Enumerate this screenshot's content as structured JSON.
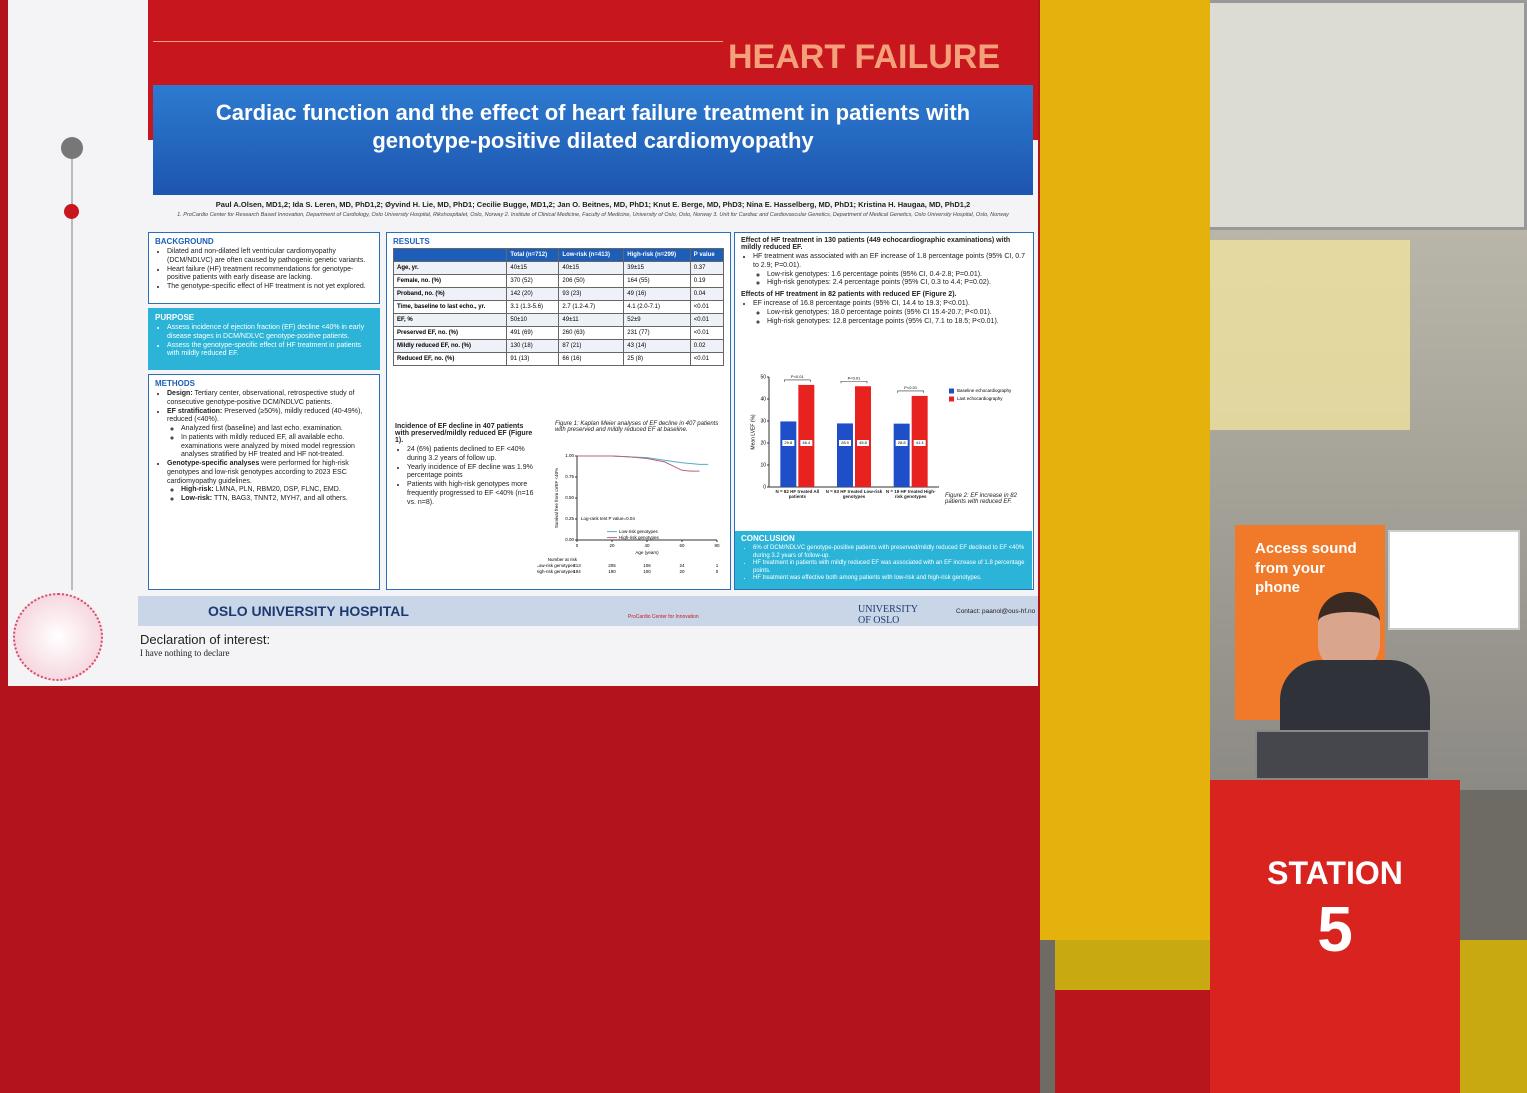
{
  "banner": "HEART FAILURE",
  "poster": {
    "title": "Cardiac function and the effect of heart failure treatment in patients with genotype-positive dilated cardiomyopathy",
    "authors": "Paul A.Olsen, MD1,2; Ida S. Leren, MD, PhD1,2; Øyvind H. Lie, MD, PhD1; Cecilie Bugge, MD1,2; Jan O. Beitnes, MD, PhD1; Knut E. Berge, MD, PhD3; Nina E. Hasselberg, MD, PhD1; Kristina H. Haugaa, MD, PhD1,2",
    "affiliations": "1. ProCardio Center for Research Based Innovation, Department of Cardiology, Oslo University Hospital, Rikshospitalet, Oslo, Norway 2. Institute of Clinical Medicine, Faculty of Medicine, University of Oslo, Oslo, Norway 3. Unit for Cardiac and Cardiovascular Genetics, Department of Medical Genetics, Oslo University Hospital, Oslo, Norway",
    "background": {
      "heading": "BACKGROUND",
      "items": [
        "Dilated and non-dilated left ventricular cardiomyopathy (DCM/NDLVC) are often caused by pathogenic genetic variants.",
        "Heart failure (HF) treatment recommendations for genotype-positive patients with early disease are lacking.",
        "The genotype-specific effect of HF treatment is not yet explored."
      ]
    },
    "purpose": {
      "heading": "PURPOSE",
      "items": [
        "Assess incidence of ejection fraction (EF) decline <40% in early disease stages in DCM/NDLVC genotype-positive patients.",
        "Assess the genotype-specific effect of HF treatment in patients with mildly reduced EF."
      ]
    },
    "methods": {
      "heading": "METHODS",
      "items": [
        {
          "label": "Design:",
          "text": "Tertiary center, observational, retrospective study of consecutive genotype-positive DCM/NDLVC patients."
        },
        {
          "label": "EF stratification:",
          "text": "Preserved (≥50%), mildly reduced (40-49%), reduced (<40%).",
          "sub": [
            "Analyzed first (baseline) and last echo. examination.",
            "In patients with mildly reduced EF, all available echo. examinations were analyzed by mixed model regression analyses stratified by HF treated and HF not-treated."
          ]
        },
        {
          "label": "Genotype-specific analyses",
          "text": "were performed for high-risk genotypes and low-risk genotypes according to 2023 ESC cardiomyopathy guidelines.",
          "sub": [
            {
              "label": "High-risk:",
              "text": "LMNA, PLN, RBM20, DSP, FLNC, EMD."
            },
            {
              "label": "Low-risk:",
              "text": "TTN, BAG3, TNNT2, MYH7, and all others."
            }
          ]
        }
      ]
    },
    "results": {
      "heading": "RESULTS",
      "table": {
        "columns": [
          "Total (n=712)",
          "Low-risk (n=413)",
          "High-risk (n=299)",
          "P value"
        ],
        "rows": [
          [
            "Age, yr.",
            "40±15",
            "40±15",
            "39±15",
            "0.37"
          ],
          [
            "Female, no. (%)",
            "370 (52)",
            "206 (50)",
            "164 (55)",
            "0.19"
          ],
          [
            "Proband, no. (%)",
            "142 (20)",
            "93 (23)",
            "49 (16)",
            "0.04"
          ],
          [
            "Time, baseline to last echo., yr.",
            "3.1 (1.3-5.6)",
            "2.7 (1.2-4.7)",
            "4.1 (2.0-7.1)",
            "<0.01"
          ],
          [
            "EF, %",
            "50±10",
            "49±11",
            "52±9",
            "<0.01"
          ],
          [
            "Preserved EF, no. (%)",
            "491 (69)",
            "260 (63)",
            "231 (77)",
            "<0.01"
          ],
          [
            "Mildly reduced EF, no. (%)",
            "130 (18)",
            "87 (21)",
            "43 (14)",
            "0.02"
          ],
          [
            "Reduced EF, no. (%)",
            "91 (13)",
            "66 (16)",
            "25 (8)",
            "<0.01"
          ]
        ]
      },
      "incidence": {
        "heading": "Incidence of EF decline in 407 patients with preserved/mildly reduced EF (Figure 1).",
        "items": [
          "24 (6%) patients declined to EF <40% during 3.2 years of follow up.",
          "Yearly incidence of EF decline was 1.9% percentage points",
          "Patients with high-risk genotypes more frequently progressed to EF <40% (n=16 vs. n=8)."
        ]
      },
      "figure1": {
        "caption": "Figure 1: Kaplan Meier analyses of EF decline in 407 patients with preserved and mildly reduced EF at baseline.",
        "chart_data": {
          "type": "line",
          "xlabel": "Age (years)",
          "ylabel": "Survival free from LVEF <40%",
          "annotation": "Log-rank test P value=0.04",
          "xlim": [
            0,
            80
          ],
          "xticks": [
            0,
            20,
            40,
            60,
            80
          ],
          "ylim": [
            0,
            1
          ],
          "yticks": [
            {
              "value": 0,
              "label": "0.00"
            },
            0.25,
            {
              "value": 0.5,
              "label": "0.50"
            },
            0.75,
            {
              "value": 1,
              "label": "1.00"
            }
          ],
          "series": [
            {
              "name": "Low-risk genotypes",
              "color": "#5aa9c9",
              "x": [
                0,
                20,
                30,
                40,
                50,
                60,
                70,
                75
              ],
              "y": [
                1,
                1,
                0.99,
                0.98,
                0.95,
                0.92,
                0.9,
                0.9
              ]
            },
            {
              "name": "High-risk genotypes",
              "color": "#b5657a",
              "x": [
                0,
                20,
                30,
                40,
                50,
                55,
                60,
                65,
                70
              ],
              "y": [
                1,
                1,
                0.99,
                0.97,
                0.93,
                0.88,
                0.83,
                0.82,
                0.82
              ]
            }
          ],
          "risk_table": {
            "title": "Number at risk",
            "rows": [
              {
                "name": "Low-risk genotypes",
                "values": [
                  "213",
                  "205",
                  "106",
                  "24",
                  "1"
                ]
              },
              {
                "name": "High-risk genotypes",
                "values": [
                  "194",
                  "190",
                  "100",
                  "20",
                  "0"
                ]
              }
            ]
          }
        }
      }
    },
    "effect": {
      "mildly_heading": "Effect of HF treatment in 130 patients (449 echocardiographic examinations) with mildly reduced EF.",
      "mildly_items": [
        {
          "text": "HF treatment was associated with an EF increase of 1.8 percentage points (95% CI, 0.7 to 2.9; P=0.01).",
          "sub": [
            "Low-risk genotypes: 1.6 percentage points (95% CI, 0.4-2.8; P=0.01).",
            "High-risk genotypes: 2.4 percentage points (95% CI, 0.3 to 4.4; P=0.02)."
          ]
        }
      ],
      "reduced_heading": "Effects of HF treatment in 82 patients with reduced EF (Figure 2).",
      "reduced_items": [
        {
          "text": "EF increase of 16.8 percentage points (95% CI, 14.4 to 19.3; P<0.01).",
          "sub": [
            "Low-risk genotypes: 18.0 percentage points (95% CI 15.4-20.7; P<0.01).",
            "High-risk genotypes: 12.8 percentage points (95% CI, 7.1 to 18.5; P<0.01)."
          ]
        }
      ]
    },
    "figure2": {
      "caption": "Figure 2: EF increase in 82 patients with reduced EF.",
      "chart_data": {
        "type": "bar",
        "ylabel": "Mean LVEF (%)",
        "ylim": [
          0,
          50
        ],
        "yticks": [
          0,
          10,
          20,
          30,
          40,
          50
        ],
        "categories": [
          "N = 82 HF treated All patients",
          "N = 63 HF treated Low-risk genotypes",
          "N = 19 HF treated High-risk genotypes"
        ],
        "series": [
          {
            "name": "Baseline echocardiography",
            "color": "#1f4fc8",
            "values": [
              29.8,
              28.9,
              28.8
            ]
          },
          {
            "name": "Last echocardiography",
            "color": "#e8231f",
            "values": [
              46.4,
              45.8,
              41.4
            ]
          }
        ],
        "significance": [
          "P<0.01",
          "P<0.01",
          "P<0.01"
        ]
      }
    },
    "conclusion": {
      "heading": "CONCLUSION",
      "items": [
        "6% of DCM/NDLVC genotype-positive patients with preserved/mildly reduced EF declined to EF <40% during 3.2 years of follow-up.",
        "HF treatment in patients with mildly reduced EF was associated with an EF increase of 1.8 percentage points.",
        "HF treatment was effective both among patients with low-risk and high-risk genotypes."
      ]
    },
    "footer": {
      "hospital": "OSLO UNIVERSITY HOSPITAL",
      "center": "ProCardio Center for Innovation",
      "university": "UNIVERSITY OF OSLO",
      "contact": "Contact: paanol@ous-hf.no"
    }
  },
  "declaration": {
    "title": "Declaration of interest:",
    "text": "I have nothing to declare"
  },
  "scene": {
    "booth_sign": "Access sound from your phone",
    "station": {
      "label": "STATION",
      "number": "5"
    }
  }
}
